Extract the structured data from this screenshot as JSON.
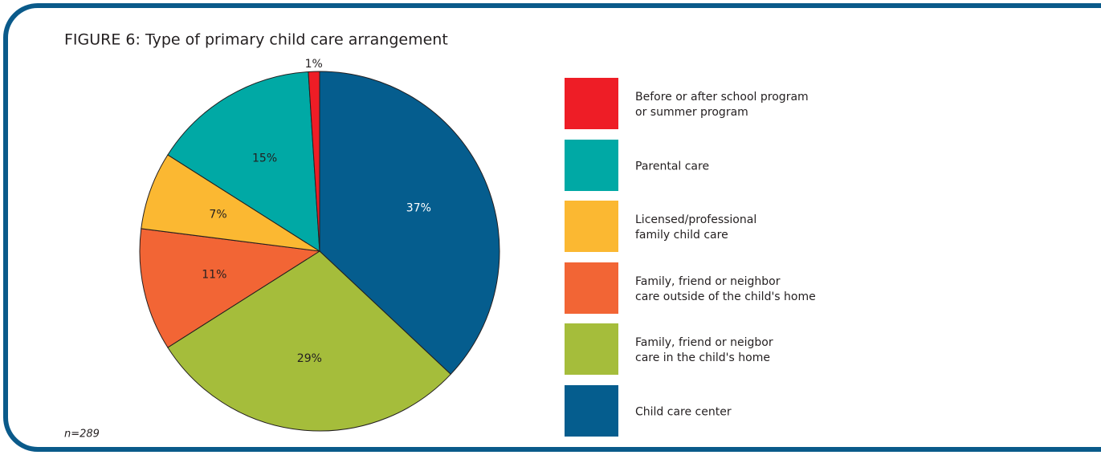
{
  "chart_data": {
    "type": "pie",
    "title": "FIGURE 6:  Type of primary child care arrangement",
    "note": "n=289",
    "categories": [
      "Child care center",
      "Family, friend or neigbor\ncare in the child's home",
      "Family, friend or neighbor\ncare outside of the child's home",
      "Licensed/professional\nfamily child care",
      "Parental care",
      "Before or after school program\nor summer program"
    ],
    "values": [
      37,
      29,
      11,
      7,
      15,
      1
    ],
    "value_labels": [
      "37%",
      "29%",
      "11%",
      "7%",
      "15%",
      "1%"
    ],
    "colors": [
      "#055d8e",
      "#a5bd3b",
      "#f26535",
      "#fbb832",
      "#00a9a5",
      "#ee1d26"
    ],
    "label_colors": [
      "#ffffff",
      "#231f20",
      "#231f20",
      "#231f20",
      "#231f20",
      "#231f20"
    ]
  }
}
